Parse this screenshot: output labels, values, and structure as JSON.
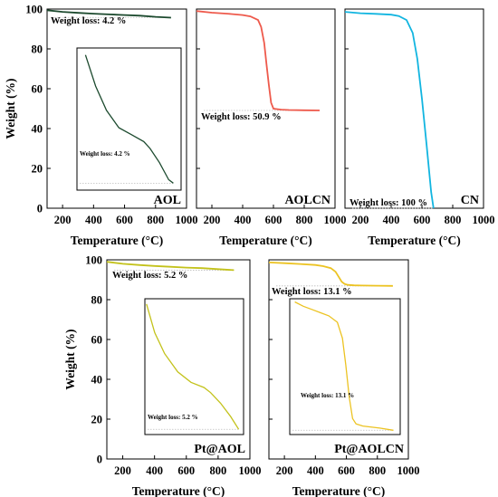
{
  "y_axis_title": "Weight (%)",
  "x_axis_title": "Temperature (°C)",
  "x_ticks": [
    "200",
    "400",
    "600",
    "800",
    "1000"
  ],
  "y_ticks": [
    "0",
    "20",
    "40",
    "60",
    "80",
    "100"
  ],
  "chart_data": [
    {
      "id": "AOL",
      "type": "line",
      "panel_label": "AOL",
      "xlabel": "Temperature (°C)",
      "ylabel": "Weight (%)",
      "xlim": [
        100,
        1000
      ],
      "ylim": [
        0,
        100
      ],
      "color": "#1c4a2e",
      "loss_label": "Weight loss: 4.2 %",
      "loss_level": 95.8,
      "x": [
        100,
        200,
        300,
        400,
        500,
        600,
        700,
        800,
        900
      ],
      "y": [
        99.4,
        98.6,
        98.1,
        97.7,
        97.3,
        97.0,
        96.7,
        96.1,
        95.7
      ],
      "inset": {
        "loss_label": "Weight loss: 4.2 %",
        "x": [
          285,
          350,
          420,
          500,
          580,
          660,
          700,
          760,
          820,
          850
        ],
        "y": [
          99.5,
          98.6,
          97.9,
          97.4,
          97.2,
          97.0,
          96.8,
          96.4,
          95.9,
          95.8
        ]
      }
    },
    {
      "id": "AOLCN",
      "type": "line",
      "panel_label": "AOLCN",
      "xlabel": "Temperature (°C)",
      "ylabel": "Weight (%)",
      "xlim": [
        100,
        1000
      ],
      "ylim": [
        0,
        100
      ],
      "color": "#ee5a4c",
      "loss_label": "Weight loss: 50.9 %",
      "loss_level": 49.1,
      "x": [
        100,
        200,
        300,
        400,
        450,
        500,
        520,
        540,
        555,
        570,
        585,
        600,
        650,
        700,
        800,
        900
      ],
      "y": [
        99.0,
        98.2,
        97.7,
        97.0,
        96.3,
        94.5,
        91.0,
        83.0,
        72.0,
        62.0,
        53.0,
        50.0,
        49.5,
        49.3,
        49.2,
        49.1
      ]
    },
    {
      "id": "CN",
      "type": "line",
      "panel_label": "CN",
      "xlabel": "Temperature (°C)",
      "ylabel": "Weight (%)",
      "xlim": [
        100,
        1000
      ],
      "ylim": [
        0,
        100
      ],
      "color": "#12b5e0",
      "loss_label": "Weight loss: 100 %",
      "loss_level": 0,
      "x": [
        100,
        200,
        300,
        400,
        450,
        500,
        540,
        570,
        600,
        630,
        660,
        675
      ],
      "y": [
        98.6,
        97.9,
        97.6,
        97.2,
        96.5,
        94.5,
        88.0,
        75.0,
        55.0,
        32.0,
        8.0,
        0
      ]
    },
    {
      "id": "Pt@AOL",
      "type": "line",
      "panel_label": "Pt@AOL",
      "xlabel": "Temperature (°C)",
      "ylabel": "Weight (%)",
      "xlim": [
        100,
        1000
      ],
      "ylim": [
        0,
        100
      ],
      "color": "#c3c21b",
      "loss_label": "Weight loss: 5.2 %",
      "loss_level": 94.8,
      "x": [
        100,
        200,
        300,
        400,
        500,
        600,
        700,
        800,
        900
      ],
      "y": [
        99.0,
        98.0,
        97.4,
        96.9,
        96.5,
        96.1,
        95.8,
        95.3,
        94.8
      ],
      "inset": {
        "loss_label": "Weight loss: 5.2 %",
        "x": [
          310,
          360,
          420,
          500,
          580,
          660,
          700,
          760,
          820,
          870
        ],
        "y": [
          99.6,
          98.5,
          97.7,
          97.0,
          96.6,
          96.4,
          96.2,
          95.8,
          95.3,
          94.8
        ]
      }
    },
    {
      "id": "Pt@AOLCN",
      "type": "line",
      "panel_label": "Pt@AOLCN",
      "xlabel": "Temperature (°C)",
      "ylabel": "Weight (%)",
      "xlim": [
        100,
        1000
      ],
      "ylim": [
        0,
        100
      ],
      "color": "#ecc322",
      "loss_label": "Weight loss: 13.1 %",
      "loss_level": 86.9,
      "x": [
        100,
        200,
        300,
        400,
        450,
        500,
        530,
        550,
        570,
        590,
        610,
        650,
        700,
        800,
        900
      ],
      "y": [
        98.7,
        98.3,
        97.9,
        97.4,
        96.8,
        95.8,
        94.0,
        91.5,
        89.0,
        87.8,
        87.4,
        87.2,
        87.1,
        87.0,
        86.9
      ],
      "inset": {
        "loss_label": "Weight loss: 13.1 %",
        "x": [
          300,
          350,
          400,
          450,
          500,
          550,
          580,
          600,
          620,
          640,
          660,
          700,
          800,
          880
        ],
        "y": [
          98.9,
          98.5,
          98.2,
          97.9,
          97.6,
          97.0,
          95.5,
          93.0,
          90.0,
          88.0,
          87.5,
          87.3,
          87.1,
          86.9
        ]
      }
    }
  ]
}
